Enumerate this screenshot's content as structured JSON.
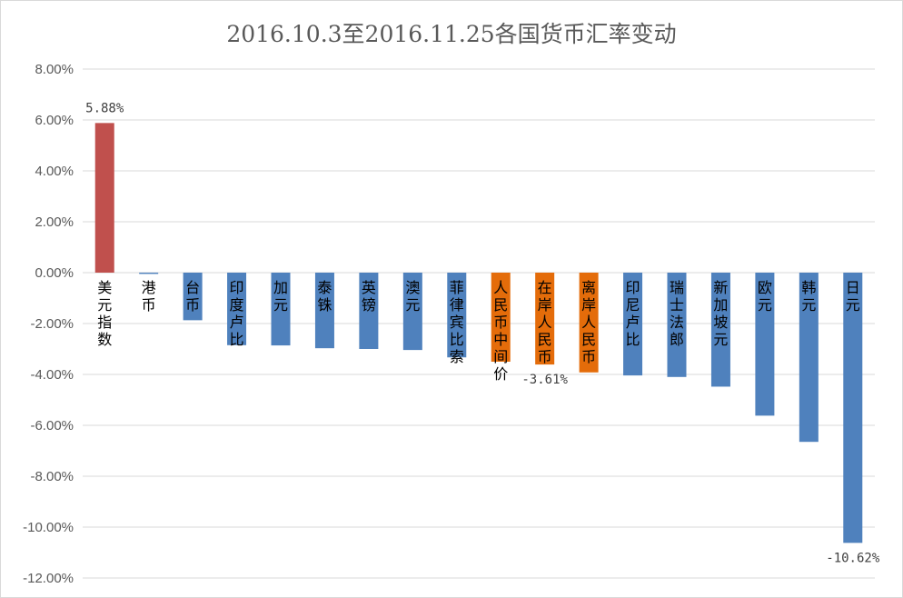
{
  "chart_data": {
    "type": "bar",
    "title": "2016.10.3至2016.11.25各国货币汇率变动",
    "xlabel": "",
    "ylabel": "",
    "ylim": [
      -12,
      8
    ],
    "yticks": [
      8,
      6,
      4,
      2,
      0,
      -2,
      -4,
      -6,
      -8,
      -10,
      -12
    ],
    "ytick_labels": [
      "8.00%",
      "6.00%",
      "4.00%",
      "2.00%",
      "0.00%",
      "-2.00%",
      "-4.00%",
      "-6.00%",
      "-8.00%",
      "-10.00%",
      "-12.00%"
    ],
    "grid": true,
    "legend": "none",
    "unit": "%",
    "categories": [
      "美元指数",
      "港币",
      "台币",
      "印度卢比",
      "加元",
      "泰铢",
      "英镑",
      "澳元",
      "菲律宾比索",
      "人民币中间价",
      "在岸人民币",
      "离岸人民币",
      "印尼卢比",
      "瑞士法郎",
      "新加坡元",
      "欧元",
      "韩元",
      "日元"
    ],
    "values": [
      5.88,
      -0.05,
      -1.87,
      -2.85,
      -2.86,
      -2.97,
      -3.0,
      -3.04,
      -3.33,
      -3.5,
      -3.61,
      -3.92,
      -4.04,
      -4.1,
      -4.48,
      -5.62,
      -6.65,
      -10.62
    ],
    "colors": [
      "#c0504d",
      "#4f81bd",
      "#4f81bd",
      "#4f81bd",
      "#4f81bd",
      "#4f81bd",
      "#4f81bd",
      "#4f81bd",
      "#4f81bd",
      "#e46c0a",
      "#e46c0a",
      "#e46c0a",
      "#4f81bd",
      "#4f81bd",
      "#4f81bd",
      "#4f81bd",
      "#4f81bd",
      "#4f81bd"
    ],
    "data_labels": [
      {
        "index": 0,
        "text": "5.88%"
      },
      {
        "index": 10,
        "text": "-3.61%"
      },
      {
        "index": 17,
        "text": "-10.62%"
      }
    ]
  }
}
